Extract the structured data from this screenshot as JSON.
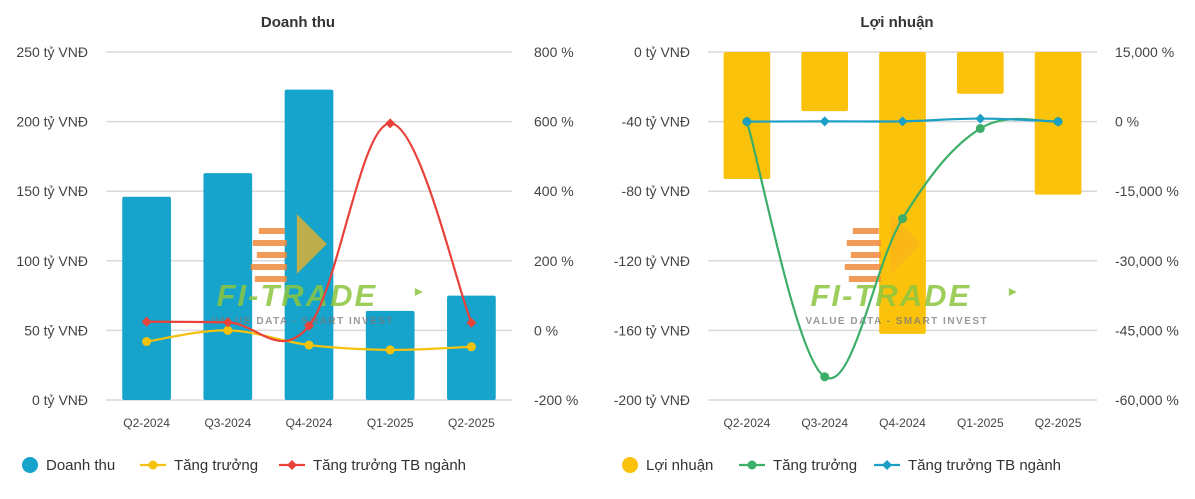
{
  "watermark": {
    "brand": "FI-TRADE",
    "tagline": "VALUE DATA - SMART INVEST"
  },
  "chart_data": [
    {
      "type": "bar",
      "title": "Doanh thu",
      "categories": [
        "Q2-2024",
        "Q3-2024",
        "Q4-2024",
        "Q1-2025",
        "Q2-2025"
      ],
      "y_left": {
        "range": [
          0,
          250
        ],
        "ticks": [
          {
            "value": 0,
            "label": "0 tỷ VNĐ"
          },
          {
            "value": 50,
            "label": "50 tỷ VNĐ"
          },
          {
            "value": 100,
            "label": "100 tỷ VNĐ"
          },
          {
            "value": 150,
            "label": "150 tỷ VNĐ"
          },
          {
            "value": 200,
            "label": "200 tỷ VNĐ"
          },
          {
            "value": 250,
            "label": "250 tỷ VNĐ"
          }
        ]
      },
      "y_right": {
        "range": [
          -200,
          800
        ],
        "ticks": [
          {
            "value": -200,
            "label": "-200 %"
          },
          {
            "value": 0,
            "label": "0 %"
          },
          {
            "value": 200,
            "label": "200 %"
          },
          {
            "value": 400,
            "label": "400 %"
          },
          {
            "value": 600,
            "label": "600 %"
          },
          {
            "value": 800,
            "label": "800 %"
          }
        ]
      },
      "grid": true,
      "legend_position": "bottom-left",
      "series": [
        {
          "name": "Doanh thu",
          "kind": "bar",
          "axis": "left",
          "color": "#16a3cc",
          "values": [
            146,
            163,
            223,
            64,
            75
          ]
        },
        {
          "name": "Tăng trưởng",
          "kind": "line",
          "axis": "right",
          "color": "#f4c20d",
          "marker": "circle",
          "values": [
            -32,
            0,
            -42,
            -56,
            -47
          ]
        },
        {
          "name": "Tăng trưởng TB ngành",
          "kind": "line",
          "axis": "right",
          "color": "#e8423b",
          "marker": "diamond",
          "values": [
            25,
            23,
            13,
            595,
            22
          ]
        }
      ]
    },
    {
      "type": "bar",
      "title": "Lợi nhuận",
      "categories": [
        "Q2-2024",
        "Q3-2024",
        "Q4-2024",
        "Q1-2025",
        "Q2-2025"
      ],
      "y_left": {
        "range": [
          -200,
          0
        ],
        "ticks": [
          {
            "value": -200,
            "label": "-200 tỷ VNĐ"
          },
          {
            "value": -160,
            "label": "-160 tỷ VNĐ"
          },
          {
            "value": -120,
            "label": "-120 tỷ VNĐ"
          },
          {
            "value": -80,
            "label": "-80 tỷ VNĐ"
          },
          {
            "value": -40,
            "label": "-40 tỷ VNĐ"
          },
          {
            "value": 0,
            "label": "0 tỷ VNĐ"
          }
        ]
      },
      "y_right": {
        "range": [
          -60000,
          15000
        ],
        "ticks": [
          {
            "value": -60000,
            "label": "-60,000 %"
          },
          {
            "value": -45000,
            "label": "-45,000 %"
          },
          {
            "value": -30000,
            "label": "-30,000 %"
          },
          {
            "value": -15000,
            "label": "-15,000 %"
          },
          {
            "value": 0,
            "label": "0 %"
          },
          {
            "value": 15000,
            "label": "15,000 %"
          }
        ]
      },
      "grid": true,
      "legend_position": "bottom-left",
      "series": [
        {
          "name": "Lợi nhuận",
          "kind": "bar",
          "axis": "left",
          "color": "#fbc20b",
          "values": [
            -73,
            -34,
            -162,
            -24,
            -82
          ]
        },
        {
          "name": "Tăng trưởng",
          "kind": "line",
          "axis": "right",
          "color": "#3cae68",
          "marker": "circle",
          "values": [
            0,
            -55000,
            -20900,
            -1500,
            0
          ]
        },
        {
          "name": "Tăng trưởng TB ngành",
          "kind": "line",
          "axis": "right",
          "color": "#1b9fc6",
          "marker": "diamond",
          "values": [
            0,
            50,
            60,
            650,
            0
          ]
        }
      ]
    }
  ]
}
